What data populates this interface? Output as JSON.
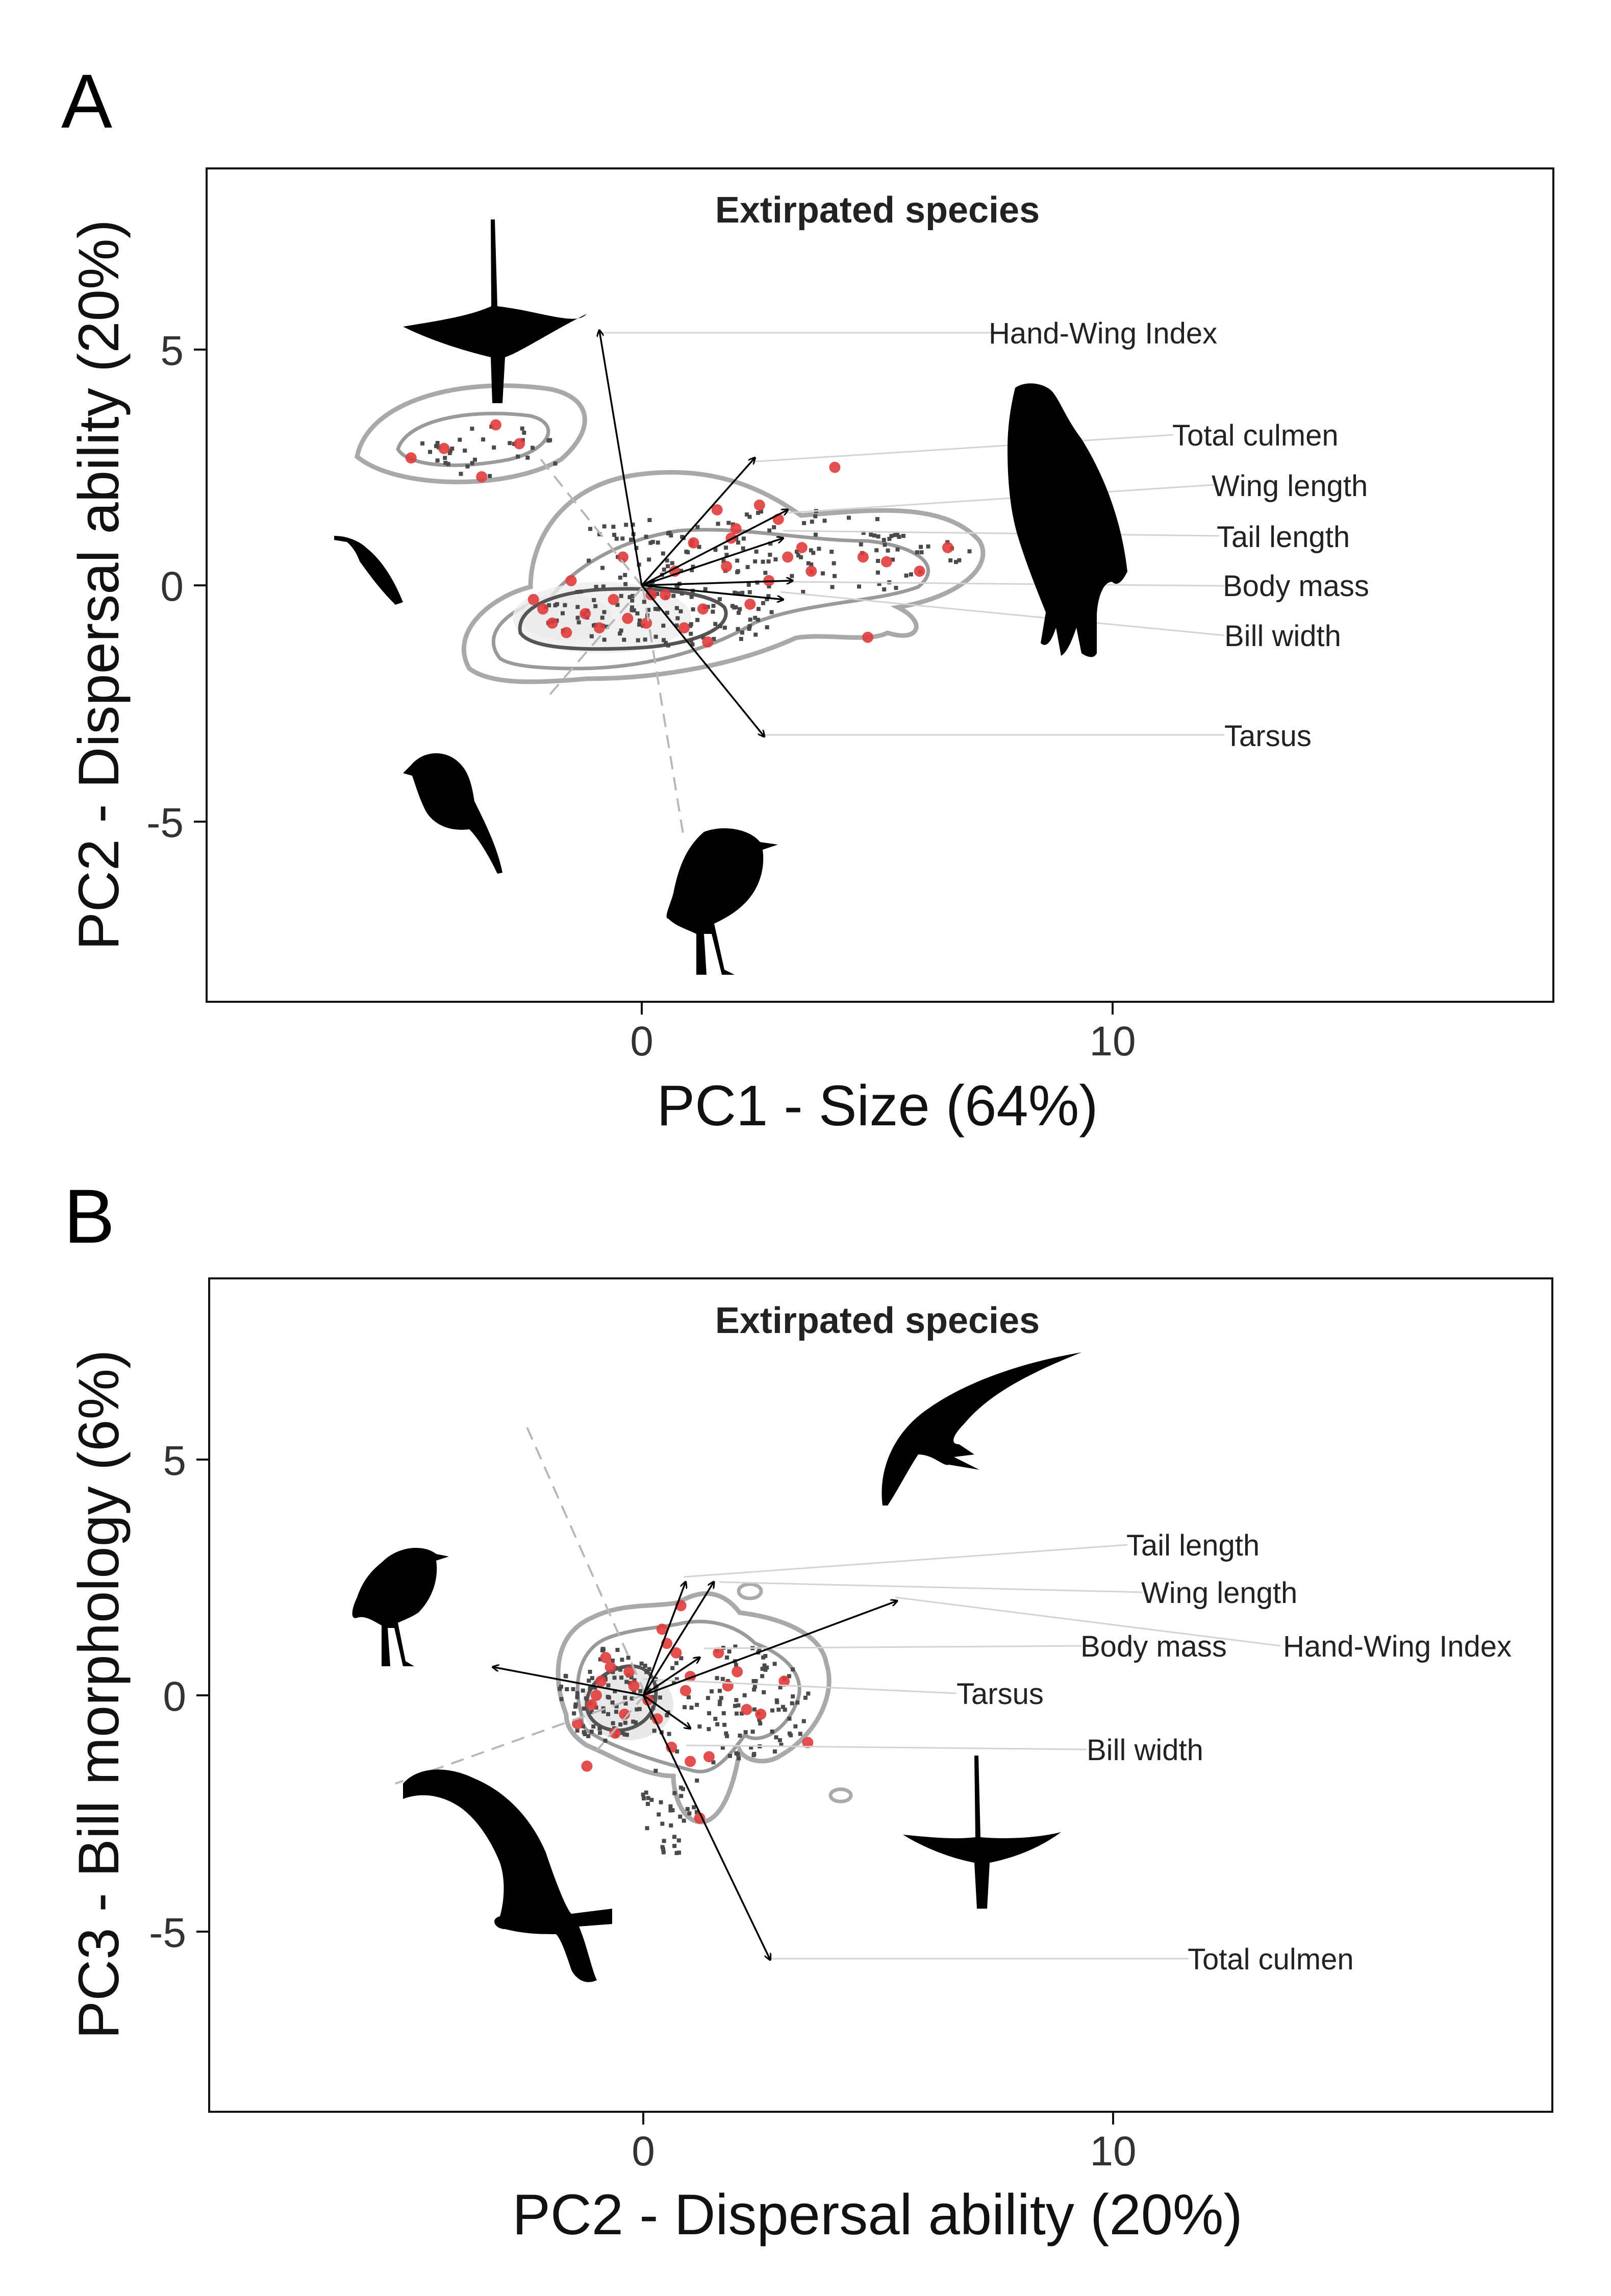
{
  "panels": [
    {
      "letter": "A",
      "title": "Extirpated species",
      "xlabel": "PC1 - Size (64%)",
      "ylabel": "PC2 - Dispersal ability (20%)",
      "xticks": [
        "0",
        "10"
      ],
      "yticks": [
        "5",
        "0",
        "-5"
      ],
      "loadings": [
        {
          "label": "Hand-Wing Index",
          "x": -0.9,
          "y": 5.4
        },
        {
          "label": "Total culmen",
          "x": 2.4,
          "y": 2.7
        },
        {
          "label": "Wing length",
          "x": 3.1,
          "y": 1.6
        },
        {
          "label": "Tail length",
          "x": 3.0,
          "y": 1.0
        },
        {
          "label": "Body mass",
          "x": 3.2,
          "y": 0.1
        },
        {
          "label": "Bill width",
          "x": 3.0,
          "y": -0.3
        },
        {
          "label": "Tarsus",
          "x": 2.6,
          "y": -3.2
        }
      ],
      "silhouettes": [
        "hummingbird-icon",
        "small-hummingbird-icon",
        "songbird-icon",
        "ground-bird-icon",
        "raptor-icon"
      ]
    },
    {
      "letter": "B",
      "title": "Extirpated species",
      "xlabel": "PC2 - Dispersal ability (20%)",
      "ylabel": "PC3 - Bill morphology (6%)",
      "xticks": [
        "0",
        "10"
      ],
      "yticks": [
        "5",
        "0",
        "-5"
      ],
      "loadings": [
        {
          "label": "Tail length",
          "x": 0.9,
          "y": 2.4
        },
        {
          "label": "Wing length",
          "x": 1.5,
          "y": 2.4
        },
        {
          "label": "Hand-Wing Index",
          "x": 5.4,
          "y": 2.0
        },
        {
          "label": "Body mass",
          "x": 1.2,
          "y": 0.8
        },
        {
          "label": "Tarsus",
          "x": -3.2,
          "y": 0.6
        },
        {
          "label": "Bill width",
          "x": 1.0,
          "y": -0.7
        },
        {
          "label": "Total culmen",
          "x": 2.7,
          "y": -5.6
        }
      ],
      "silhouettes": [
        "swift-icon",
        "ground-bird-icon",
        "toucan-icon",
        "hummingbird-icon"
      ]
    }
  ],
  "chart_data": [
    {
      "type": "scatter",
      "title": "Extirpated species",
      "xlabel": "PC1 - Size (64%)",
      "ylabel": "PC2 - Dispersal ability (20%)",
      "xlim": [
        -9.3,
        19.3
      ],
      "ylim": [
        -8.8,
        8.8
      ],
      "grid": false,
      "series": [
        {
          "name": "Extirpated species",
          "color": "#e03c3c",
          "x": [
            -4.9,
            -4.2,
            -3.1,
            -2.6,
            -3.4,
            -2.1,
            -1.9,
            -1.6,
            -1.2,
            -0.9,
            -0.6,
            -0.3,
            0.2,
            0.7,
            1.1,
            1.6,
            2.0,
            2.5,
            2.9,
            3.4,
            4.1,
            4.7,
            5.2,
            5.9,
            6.5,
            1.4,
            0.9,
            1.8,
            3.6,
            2.3,
            -1.5,
            -0.4,
            0.5,
            1.3,
            4.8,
            1.9,
            2.7,
            3.1,
            -2.3,
            0.1
          ],
          "y": [
            2.7,
            2.9,
            3.4,
            3.0,
            2.3,
            -0.5,
            -0.8,
            -1.0,
            -0.6,
            -0.9,
            -0.3,
            -0.7,
            -0.2,
            0.3,
            0.9,
            1.6,
            1.2,
            1.7,
            1.4,
            0.8,
            2.5,
            0.6,
            0.5,
            0.3,
            0.8,
            -1.2,
            -0.9,
            0.4,
            0.3,
            -0.4,
            0.1,
            0.6,
            -0.2,
            -0.5,
            -1.1,
            1.0,
            0.1,
            0.6,
            -0.3,
            -0.8
          ]
        }
      ],
      "loadings": [
        {
          "label": "Hand-Wing Index",
          "x": -0.9,
          "y": 5.4
        },
        {
          "label": "Total culmen",
          "x": 2.4,
          "y": 2.7
        },
        {
          "label": "Wing length",
          "x": 3.1,
          "y": 1.6
        },
        {
          "label": "Tail length",
          "x": 3.0,
          "y": 1.0
        },
        {
          "label": "Body mass",
          "x": 3.2,
          "y": 0.1
        },
        {
          "label": "Bill width",
          "x": 3.0,
          "y": -0.3
        },
        {
          "label": "Tarsus",
          "x": 2.6,
          "y": -3.2
        }
      ],
      "xticks": [
        0,
        10
      ],
      "yticks": [
        5,
        0,
        -5
      ]
    },
    {
      "type": "scatter",
      "title": "Extirpated species",
      "xlabel": "PC2 - Dispersal ability (20%)",
      "ylabel": "PC3 - Bill morphology (6%)",
      "xlim": [
        -9.3,
        19.3
      ],
      "ylim": [
        -8.8,
        8.8
      ],
      "grid": false,
      "series": [
        {
          "name": "Extirpated species",
          "color": "#e03c3c",
          "x": [
            -1.4,
            -1.1,
            -0.9,
            -0.7,
            -0.4,
            -0.2,
            0.1,
            0.4,
            0.7,
            1.0,
            1.4,
            1.6,
            2.0,
            2.5,
            3.0,
            3.5,
            -1.2,
            -0.6,
            0.3,
            0.9,
            1.2,
            -0.8,
            0.5,
            2.2,
            1.0,
            0.6,
            0.8,
            -1.0,
            -0.3,
            1.8
          ],
          "y": [
            -0.6,
            -0.2,
            0.3,
            0.6,
            -0.4,
            0.2,
            -0.1,
            1.4,
            0.9,
            -1.4,
            -1.3,
            0.9,
            0.5,
            -0.4,
            0.3,
            -1.0,
            -1.5,
            -0.8,
            -0.5,
            0.1,
            -2.6,
            0.8,
            1.1,
            -0.3,
            0.4,
            -1.1,
            1.9,
            0.0,
            0.5,
            0.2
          ]
        }
      ],
      "loadings": [
        {
          "label": "Tail length",
          "x": 0.9,
          "y": 2.4
        },
        {
          "label": "Wing length",
          "x": 1.5,
          "y": 2.4
        },
        {
          "label": "Hand-Wing Index",
          "x": 5.4,
          "y": 2.0
        },
        {
          "label": "Body mass",
          "x": 1.2,
          "y": 0.8
        },
        {
          "label": "Tarsus",
          "x": -3.2,
          "y": 0.6
        },
        {
          "label": "Bill width",
          "x": 1.0,
          "y": -0.7
        },
        {
          "label": "Total culmen",
          "x": 2.7,
          "y": -5.6
        }
      ],
      "xticks": [
        0,
        10
      ],
      "yticks": [
        5,
        0,
        -5
      ]
    }
  ]
}
